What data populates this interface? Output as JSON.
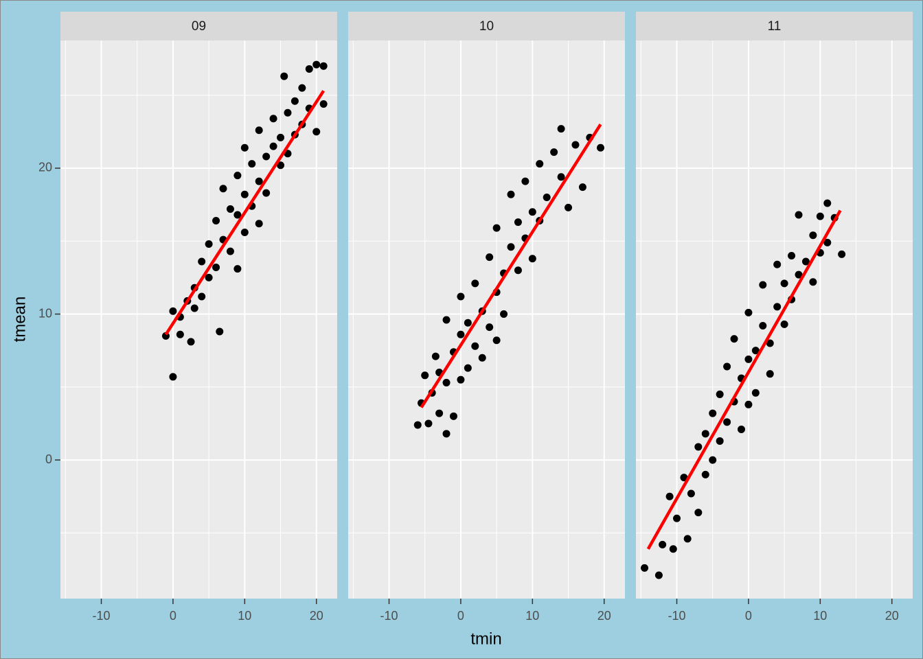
{
  "chart_data": {
    "type": "scatter",
    "xlabel": "tmin",
    "ylabel": "tmean",
    "xlim": [
      -15.7,
      22.9
    ],
    "ylim": [
      -9.5,
      28.75
    ],
    "xticks": [
      -10,
      0,
      10,
      20
    ],
    "yticks": [
      0,
      10,
      20
    ],
    "grid": true,
    "color": "#000000",
    "facets": [
      {
        "title": "09",
        "x": [
          -1,
          0,
          0,
          1,
          1,
          2,
          2.5,
          3,
          3,
          4,
          4,
          5,
          5,
          6,
          6,
          6.5,
          7,
          7,
          8,
          8,
          9,
          9,
          9,
          10,
          10,
          10,
          11,
          11,
          12,
          12,
          12,
          13,
          13,
          14,
          14,
          15,
          15,
          15.5,
          16,
          16,
          17,
          17,
          18,
          18,
          19,
          19,
          20,
          20,
          21,
          21
        ],
        "values": [
          8.5,
          5.7,
          10.2,
          9.8,
          8.6,
          10.9,
          8.1,
          11.8,
          10.4,
          13.6,
          11.2,
          12.5,
          14.8,
          13.2,
          16.4,
          8.8,
          15.1,
          18.6,
          14.3,
          17.2,
          16.8,
          19.5,
          13.1,
          18.2,
          15.6,
          21.4,
          17.4,
          20.3,
          19.1,
          22.6,
          16.2,
          20.8,
          18.3,
          21.5,
          23.4,
          20.2,
          22.1,
          26.3,
          23.8,
          21.0,
          24.6,
          22.3,
          25.5,
          23.0,
          24.1,
          26.8,
          27.1,
          22.5,
          27.0,
          24.4
        ],
        "fit": {
          "color": "#ff0000",
          "x": [
            -1,
            21
          ],
          "values": [
            8.6,
            25.3
          ]
        }
      },
      {
        "title": "10",
        "x": [
          -6,
          -5.5,
          -5,
          -4.5,
          -4,
          -3.5,
          -3,
          -3,
          -2,
          -2,
          -2,
          -1,
          -1,
          0,
          0,
          0,
          1,
          1,
          2,
          2,
          3,
          3,
          4,
          4,
          5,
          5,
          5,
          6,
          6,
          7,
          7,
          8,
          8,
          9,
          9,
          10,
          10,
          11,
          11,
          12,
          13,
          14,
          14,
          15,
          16,
          17,
          18,
          19.5
        ],
        "values": [
          2.4,
          3.9,
          5.8,
          2.5,
          4.6,
          7.1,
          3.2,
          6.0,
          1.8,
          9.6,
          5.3,
          7.4,
          3.0,
          8.6,
          5.5,
          11.2,
          9.4,
          6.3,
          7.8,
          12.1,
          10.2,
          7.0,
          13.9,
          9.1,
          11.5,
          15.9,
          8.2,
          12.8,
          10.0,
          14.6,
          18.2,
          13.0,
          16.3,
          15.2,
          19.1,
          17.0,
          13.8,
          20.3,
          16.4,
          18.0,
          21.1,
          22.7,
          19.4,
          17.3,
          21.6,
          18.7,
          22.1,
          21.4
        ],
        "fit": {
          "color": "#ff0000",
          "x": [
            -5.5,
            19.5
          ],
          "values": [
            3.6,
            23
          ]
        }
      },
      {
        "title": "11",
        "x": [
          -14.5,
          -12.5,
          -12,
          -11,
          -10.5,
          -10,
          -9,
          -8.5,
          -8,
          -7,
          -7,
          -6,
          -6,
          -5,
          -5,
          -4,
          -4,
          -3,
          -3,
          -2,
          -2,
          -1,
          -1,
          0,
          0,
          0,
          1,
          1,
          2,
          2,
          3,
          3,
          4,
          4,
          5,
          5,
          6,
          6,
          7,
          7,
          8,
          9,
          9,
          10,
          10,
          11,
          11,
          12,
          13
        ],
        "values": [
          -7.4,
          -7.9,
          -5.8,
          -2.5,
          -6.1,
          -4.0,
          -1.2,
          -5.4,
          -2.3,
          0.9,
          -3.6,
          1.8,
          -1.0,
          3.2,
          0.0,
          4.5,
          1.3,
          2.6,
          6.4,
          4.0,
          8.3,
          5.6,
          2.1,
          6.9,
          3.8,
          10.1,
          7.5,
          4.6,
          9.2,
          12.0,
          8.0,
          5.9,
          10.5,
          13.4,
          9.3,
          12.1,
          14.0,
          11.0,
          12.7,
          16.8,
          13.6,
          15.4,
          12.2,
          16.7,
          14.2,
          17.6,
          14.9,
          16.6,
          14.1
        ],
        "fit": {
          "color": "#ff0000",
          "x": [
            -14,
            12.8
          ],
          "values": [
            -6.1,
            17.1
          ]
        }
      }
    ]
  }
}
